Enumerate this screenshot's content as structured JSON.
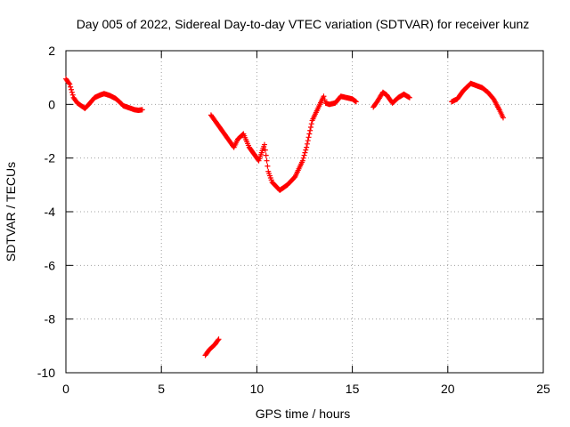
{
  "chart_data": {
    "type": "scatter",
    "title": "Day 005 of 2022, Sidereal Day-to-day VTEC variation (SDTVAR) for receiver kunz",
    "xlabel": "GPS time / hours",
    "ylabel": "SDTVAR / TECUs",
    "xlim": [
      0,
      25
    ],
    "ylim": [
      -10,
      2
    ],
    "xticks": [
      0,
      5,
      10,
      15,
      20,
      25
    ],
    "yticks": [
      -10,
      -8,
      -6,
      -4,
      -2,
      0,
      2
    ],
    "xtick_labels": [
      "0",
      "5",
      "10",
      "15",
      "20",
      "25"
    ],
    "ytick_labels": [
      "-10",
      "-8",
      "-6",
      "-4",
      "-2",
      "0",
      "2"
    ],
    "grid": true,
    "marker": "plus",
    "series_color": "#ff0000",
    "series": [
      {
        "name": "segment-1",
        "x": [
          0.0,
          0.2,
          0.4,
          0.6,
          0.8,
          1.0,
          1.2,
          1.5,
          1.8,
          2.0,
          2.3,
          2.6,
          2.8,
          3.0,
          3.2,
          3.4,
          3.6,
          3.8,
          4.0
        ],
        "y": [
          0.95,
          0.75,
          0.25,
          0.05,
          -0.05,
          -0.15,
          0.0,
          0.25,
          0.35,
          0.4,
          0.33,
          0.22,
          0.1,
          -0.05,
          -0.1,
          -0.15,
          -0.2,
          -0.22,
          -0.2
        ]
      },
      {
        "name": "segment-2",
        "x": [
          7.6,
          8.0,
          8.5,
          8.8,
          9.0,
          9.3,
          9.6,
          9.9,
          10.1,
          10.4,
          10.6,
          10.8,
          11.2,
          11.6,
          12.0,
          12.4,
          12.6,
          12.9,
          13.1,
          13.3,
          13.5,
          13.6,
          13.8,
          14.1,
          14.4,
          14.7,
          15.0,
          15.2
        ],
        "y": [
          -0.4,
          -0.8,
          -1.3,
          -1.6,
          -1.3,
          -1.1,
          -1.6,
          -1.9,
          -2.1,
          -1.5,
          -2.5,
          -2.9,
          -3.2,
          -3.0,
          -2.7,
          -2.1,
          -1.6,
          -0.6,
          -0.3,
          0.0,
          0.3,
          0.05,
          0.0,
          0.05,
          0.3,
          0.25,
          0.2,
          0.1
        ]
      },
      {
        "name": "segment-3",
        "x": [
          7.3,
          7.5,
          7.8,
          8.0
        ],
        "y": [
          -9.35,
          -9.15,
          -8.95,
          -8.75
        ]
      },
      {
        "name": "segment-4",
        "x": [
          16.1,
          16.3,
          16.6,
          16.8,
          17.1,
          17.4,
          17.7,
          18.0
        ],
        "y": [
          -0.1,
          0.1,
          0.45,
          0.35,
          0.05,
          0.25,
          0.38,
          0.25
        ]
      },
      {
        "name": "segment-5",
        "x": [
          20.2,
          20.5,
          20.8,
          21.2,
          21.5,
          21.8,
          22.1,
          22.4,
          22.7,
          22.9
        ],
        "y": [
          0.1,
          0.2,
          0.5,
          0.78,
          0.7,
          0.62,
          0.45,
          0.2,
          -0.2,
          -0.5
        ]
      }
    ]
  }
}
